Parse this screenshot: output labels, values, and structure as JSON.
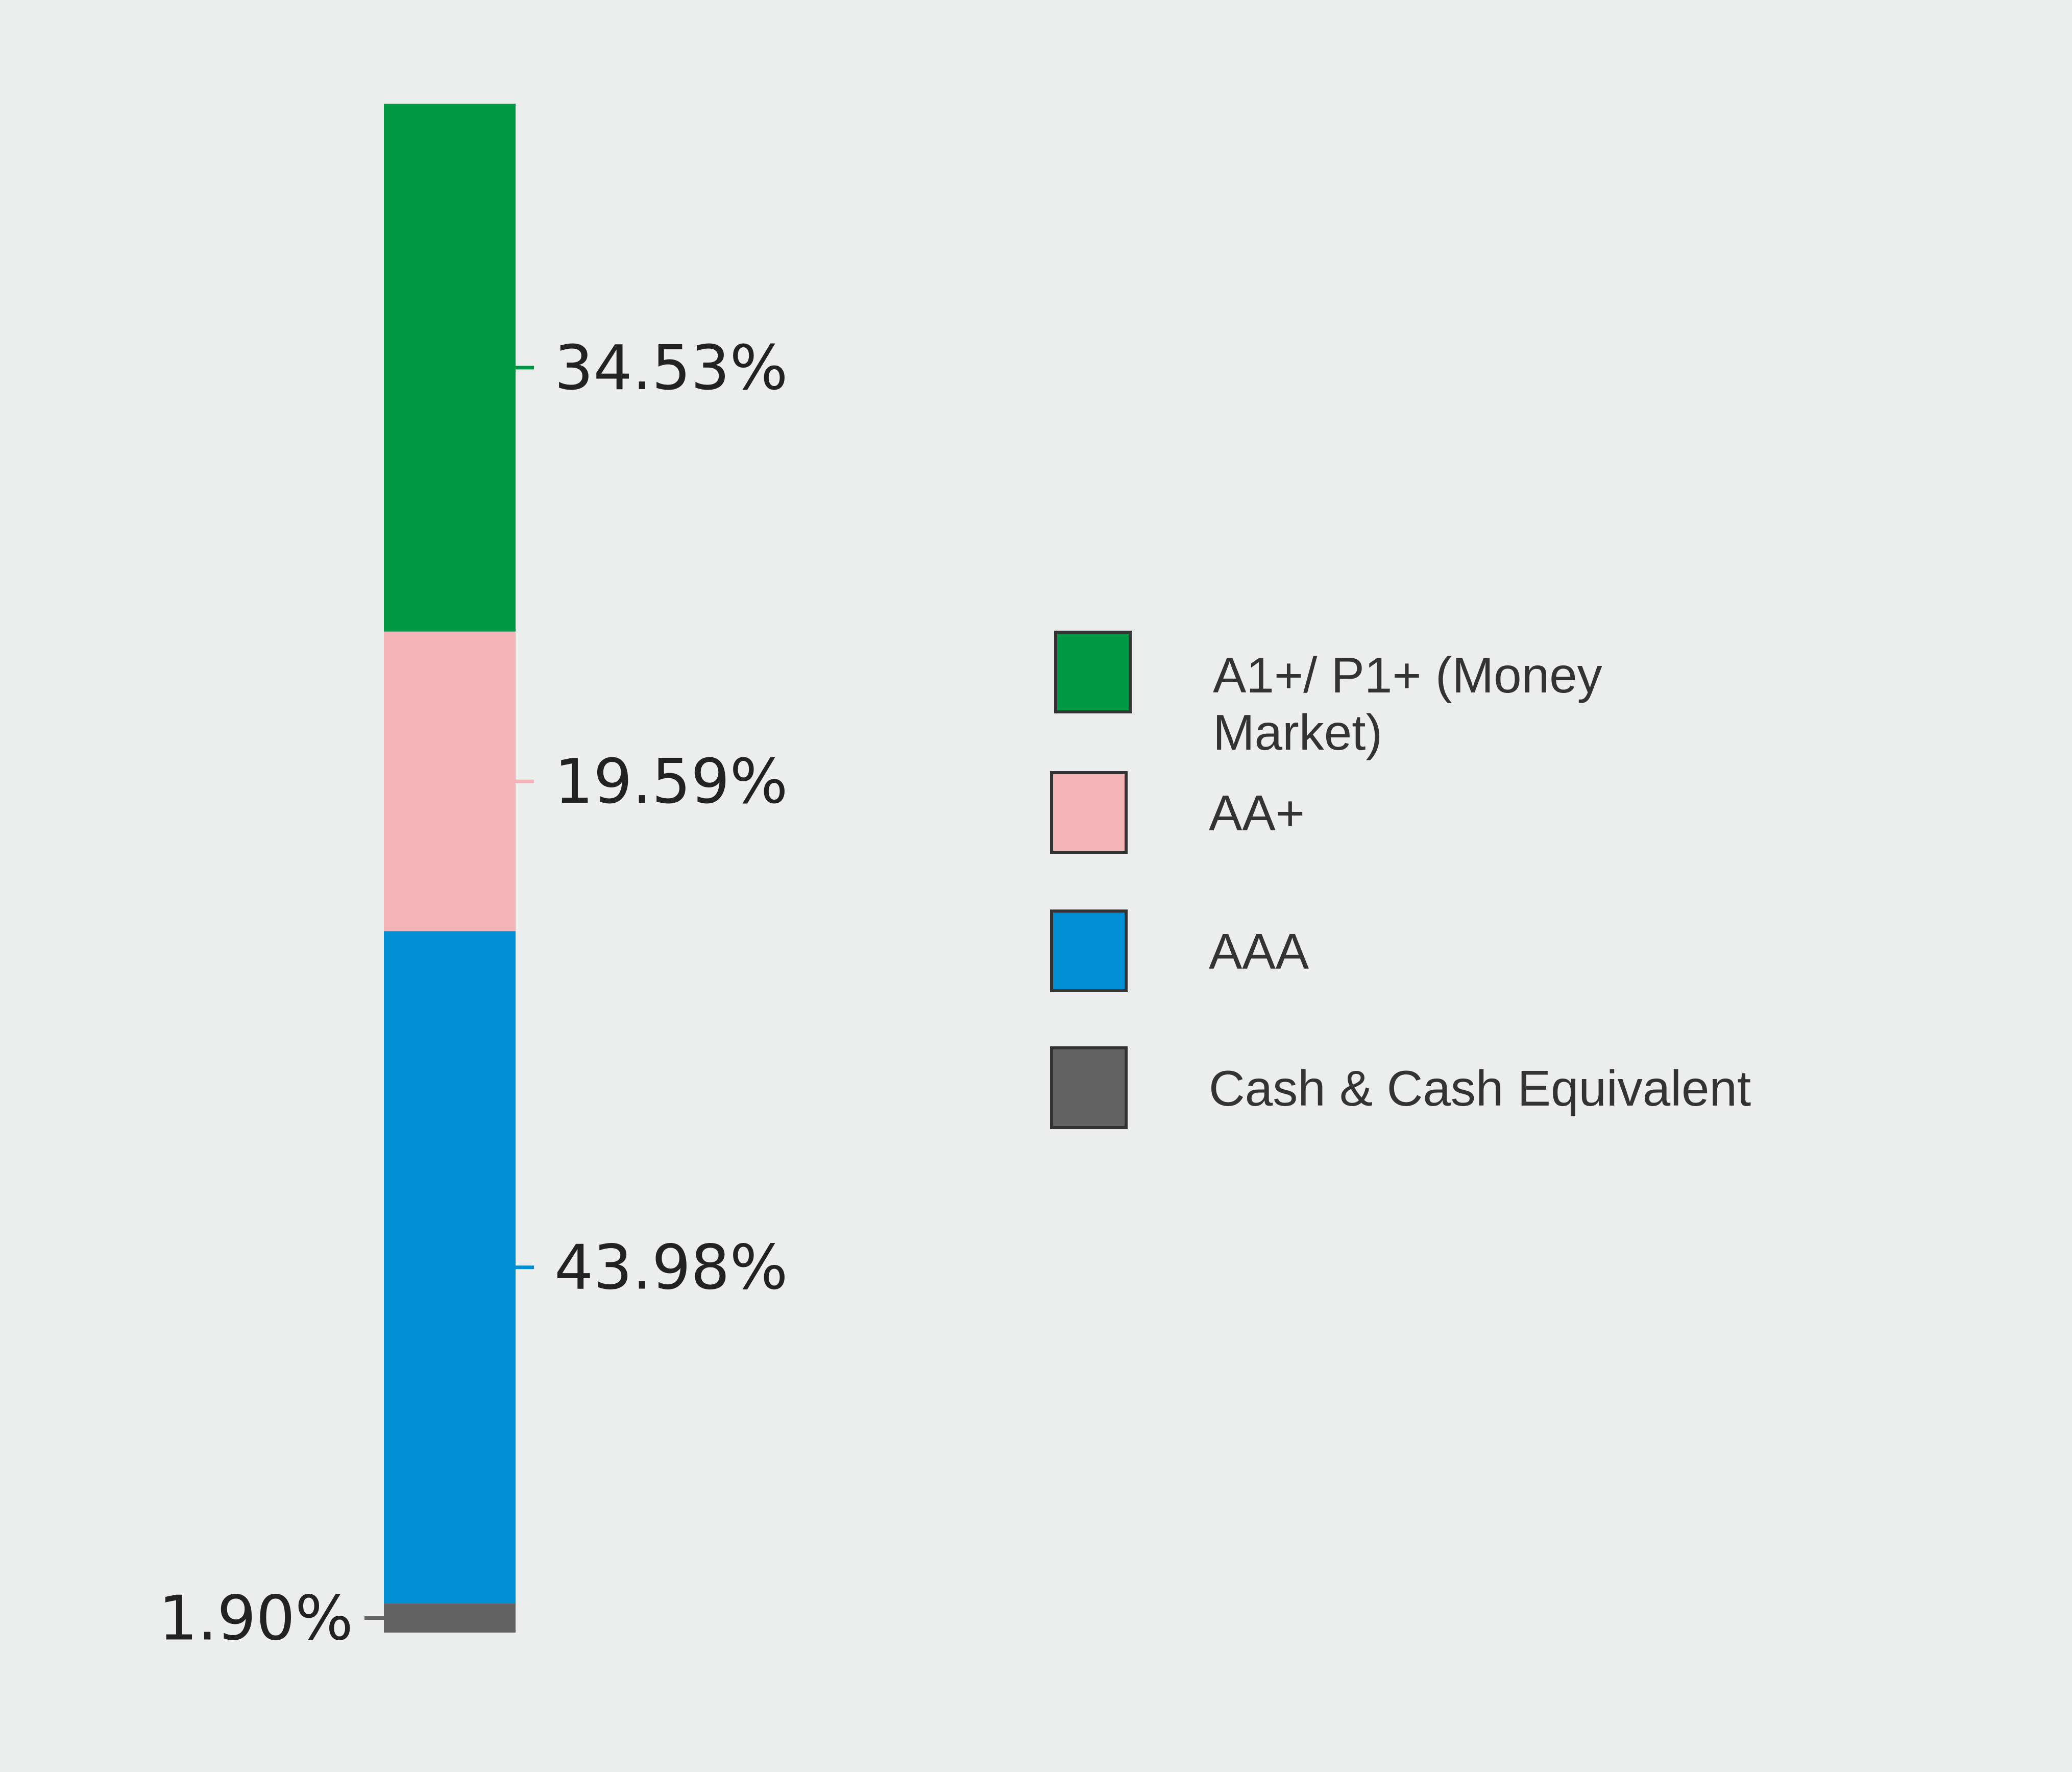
{
  "chart_data": {
    "type": "bar",
    "stacked": true,
    "orientation": "vertical",
    "unit": "%",
    "series": [
      {
        "name": "A1+/ P1+ (Money Market)",
        "name_lines": [
          "A1+/ P1+ (Money",
          "Market)"
        ],
        "value": 34.53,
        "label": "34.53%",
        "color": "#009845"
      },
      {
        "name": "AA+",
        "name_lines": [
          "AA+"
        ],
        "value": 19.59,
        "label": "19.59%",
        "color": "#f4b3b7"
      },
      {
        "name": "AAA",
        "name_lines": [
          "AAA"
        ],
        "value": 43.98,
        "label": "43.98%",
        "color": "#008fd5"
      },
      {
        "name": "Cash & Cash Equivalent",
        "name_lines": [
          "Cash & Cash Equivalent"
        ],
        "value": 1.9,
        "label": "1.90%",
        "color": "#636363"
      }
    ],
    "legend": {
      "position": "right"
    },
    "grid": false
  }
}
